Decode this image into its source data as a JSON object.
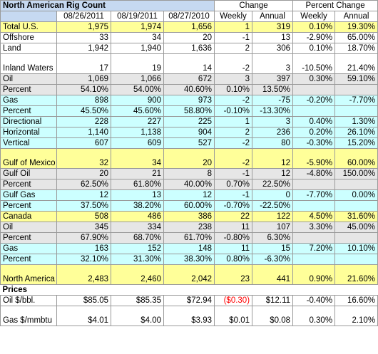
{
  "title": "North American Rig Count",
  "groups": {
    "change": "Change",
    "percent_change": "Percent Change"
  },
  "columns": [
    "08/26/2011",
    "08/19/2011",
    "08/27/2010",
    "Weekly",
    "Annual",
    "Weekly",
    "Annual"
  ],
  "rows": [
    {
      "label": "Total U.S.",
      "style": "yellow",
      "tall": false,
      "values": [
        "1,975",
        "1,974",
        "1,656",
        "1",
        "319",
        "0.10%",
        "19.30%"
      ]
    },
    {
      "label": "Offshore",
      "style": "white",
      "tall": false,
      "values": [
        "33",
        "34",
        "20",
        "-1",
        "13",
        "-2.90%",
        "65.00%"
      ]
    },
    {
      "label": "Land",
      "style": "white",
      "tall": false,
      "values": [
        "1,942",
        "1,940",
        "1,636",
        "2",
        "306",
        "0.10%",
        "18.70%"
      ]
    },
    {
      "label": "Inland Waters",
      "style": "white",
      "tall": true,
      "values": [
        "17",
        "19",
        "14",
        "-2",
        "3",
        "-10.50%",
        "21.40%"
      ]
    },
    {
      "label": "Oil",
      "style": "grey",
      "tall": false,
      "values": [
        "1,069",
        "1,066",
        "672",
        "3",
        "397",
        "0.30%",
        "59.10%"
      ]
    },
    {
      "label": "Percent",
      "style": "grey",
      "tall": false,
      "values": [
        "54.10%",
        "54.00%",
        "40.60%",
        "0.10%",
        "13.50%",
        "",
        ""
      ]
    },
    {
      "label": "Gas",
      "style": "cyan",
      "tall": false,
      "values": [
        "898",
        "900",
        "973",
        "-2",
        "-75",
        "-0.20%",
        "-7.70%"
      ]
    },
    {
      "label": "Percent",
      "style": "cyan",
      "tall": false,
      "values": [
        "45.50%",
        "45.60%",
        "58.80%",
        "-0.10%",
        "-13.30%",
        "",
        ""
      ]
    },
    {
      "label": "Directional",
      "style": "cyan",
      "tall": false,
      "values": [
        "228",
        "227",
        "225",
        "1",
        "3",
        "0.40%",
        "1.30%"
      ]
    },
    {
      "label": "Horizontal",
      "style": "cyan",
      "tall": false,
      "values": [
        "1,140",
        "1,138",
        "904",
        "2",
        "236",
        "0.20%",
        "26.10%"
      ]
    },
    {
      "label": "Vertical",
      "style": "cyan",
      "tall": false,
      "values": [
        "607",
        "609",
        "527",
        "-2",
        "80",
        "-0.30%",
        "15.20%"
      ]
    },
    {
      "label": "Gulf of Mexico",
      "style": "yellow",
      "tall": true,
      "values": [
        "32",
        "34",
        "20",
        "-2",
        "12",
        "-5.90%",
        "60.00%"
      ]
    },
    {
      "label": "Gulf Oil",
      "style": "grey",
      "tall": false,
      "values": [
        "20",
        "21",
        "8",
        "-1",
        "12",
        "-4.80%",
        "150.00%"
      ]
    },
    {
      "label": "Percent",
      "style": "grey",
      "tall": false,
      "values": [
        "62.50%",
        "61.80%",
        "40.00%",
        "0.70%",
        "22.50%",
        "",
        ""
      ]
    },
    {
      "label": "Gulf Gas",
      "style": "cyan",
      "tall": false,
      "values": [
        "12",
        "13",
        "12",
        "-1",
        "0",
        "-7.70%",
        "0.00%"
      ]
    },
    {
      "label": "Percent",
      "style": "cyan",
      "tall": false,
      "values": [
        "37.50%",
        "38.20%",
        "60.00%",
        "-0.70%",
        "-22.50%",
        "",
        ""
      ]
    },
    {
      "label": "Canada",
      "style": "yellow",
      "tall": false,
      "values": [
        "508",
        "486",
        "386",
        "22",
        "122",
        "4.50%",
        "31.60%"
      ]
    },
    {
      "label": "Oil",
      "style": "grey",
      "tall": false,
      "values": [
        "345",
        "334",
        "238",
        "11",
        "107",
        "3.30%",
        "45.00%"
      ]
    },
    {
      "label": "Percent",
      "style": "grey",
      "tall": false,
      "values": [
        "67.90%",
        "68.70%",
        "61.70%",
        "-0.80%",
        "6.30%",
        "",
        ""
      ]
    },
    {
      "label": "Gas",
      "style": "cyan",
      "tall": false,
      "values": [
        "163",
        "152",
        "148",
        "11",
        "15",
        "7.20%",
        "10.10%"
      ]
    },
    {
      "label": "Percent",
      "style": "cyan",
      "tall": false,
      "values": [
        "32.10%",
        "31.30%",
        "38.30%",
        "0.80%",
        "-6.30%",
        "",
        ""
      ]
    },
    {
      "label": "North America",
      "style": "yellow",
      "tall": true,
      "values": [
        "2,483",
        "2,460",
        "2,042",
        "23",
        "441",
        "0.90%",
        "21.60%"
      ]
    }
  ],
  "prices_label": "Prices",
  "prices": [
    {
      "label": "Oil $/bbl.",
      "style": "white",
      "tall": false,
      "values": [
        "$85.05",
        "$85.35",
        "$72.94",
        "($0.30)",
        "$12.11",
        "-0.40%",
        "16.60%"
      ],
      "red_index": 3
    },
    {
      "label": "Gas $/mmbtu",
      "style": "white",
      "tall": true,
      "values": [
        "$4.01",
        "$4.00",
        "$3.93",
        "$0.01",
        "$0.08",
        "0.30%",
        "2.10%"
      ],
      "red_index": -1
    }
  ],
  "colors": {
    "yellow": "#ffff99",
    "grey": "#e6e6e6",
    "cyan": "#ccffff",
    "header": "#c6d9f1",
    "negative": "#ff0000"
  }
}
